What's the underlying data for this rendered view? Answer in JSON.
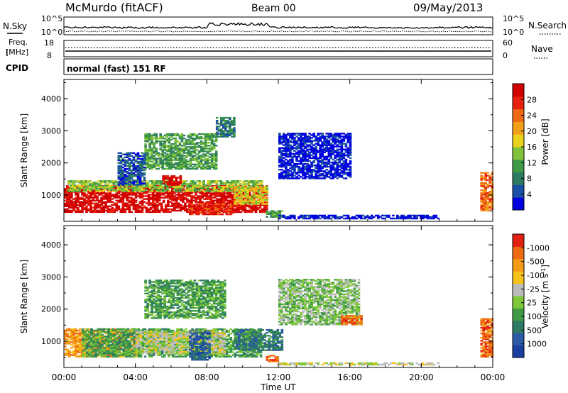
{
  "header": {
    "station": "McMurdo (fitACF)",
    "beam": "Beam 00",
    "date": "09/May/2013"
  },
  "noise_panel": {
    "left_label": "N.Sky",
    "right_label": "N.Search",
    "left_ticks": [
      "10^5",
      "10^0"
    ],
    "right_ticks": [
      "10^5",
      "10^0"
    ]
  },
  "freq_panel": {
    "left_label_1": "Freq.",
    "left_label_2": "[MHz]",
    "right_label": "Nave",
    "left_ticks": [
      "18",
      "8"
    ],
    "right_ticks": [
      "60",
      "0"
    ]
  },
  "cpid_panel": {
    "label": "CPID",
    "mode_text": "normal (fast) 151 RF"
  },
  "chart_data": [
    {
      "type": "heatmap",
      "name": "power",
      "title": "",
      "xlabel": "",
      "ylabel": "Slant Range [km]",
      "x_ticks": [
        "00:00",
        "04:00",
        "08:00",
        "12:00",
        "16:00",
        "20:00",
        "00:00"
      ],
      "y_ticks": [
        "1000",
        "2000",
        "3000",
        "4000"
      ],
      "xlim_hours": [
        0,
        24
      ],
      "ylim_km": [
        180,
        4600
      ],
      "colorbar": {
        "label": "Power [dB]",
        "ticks": [
          "4",
          "8",
          "12",
          "16",
          "20",
          "24",
          "28"
        ],
        "colors": [
          "#0000e0",
          "#1a4fa6",
          "#2e7a62",
          "#3f9a45",
          "#80c23a",
          "#e8d21b",
          "#f2a01a",
          "#ef6a14",
          "#e8200e",
          "#d00000"
        ]
      },
      "regions": [
        {
          "t0": 0.0,
          "t1": 11.3,
          "r0": 450,
          "r1": 1300,
          "level": 9
        },
        {
          "t0": 0.2,
          "t1": 11.0,
          "r0": 1100,
          "r1": 1450,
          "level": 4
        },
        {
          "t0": 5.5,
          "t1": 6.5,
          "r0": 1300,
          "r1": 1600,
          "level": 9
        },
        {
          "t0": 7.0,
          "t1": 9.5,
          "r0": 380,
          "r1": 700,
          "level": 8
        },
        {
          "t0": 9.5,
          "t1": 11.3,
          "r0": 700,
          "r1": 1250,
          "level": 5
        },
        {
          "t0": 11.3,
          "t1": 12.2,
          "r0": 300,
          "r1": 500,
          "level": 3
        },
        {
          "t0": 12.0,
          "t1": 21.0,
          "r0": 250,
          "r1": 350,
          "level": 0
        },
        {
          "t0": 4.5,
          "t1": 8.5,
          "r0": 1800,
          "r1": 2900,
          "level": 3
        },
        {
          "t0": 8.5,
          "t1": 9.5,
          "r0": 2800,
          "r1": 3400,
          "level": 2
        },
        {
          "t0": 12.0,
          "t1": 16.0,
          "r0": 1500,
          "r1": 2900,
          "level": 0
        },
        {
          "t0": 3.0,
          "t1": 4.5,
          "r0": 1300,
          "r1": 2300,
          "level": 1
        },
        {
          "t0": 23.3,
          "t1": 24.0,
          "r0": 500,
          "r1": 1700,
          "level": 7
        }
      ]
    },
    {
      "type": "heatmap",
      "name": "velocity",
      "title": "",
      "xlabel": "Time UT",
      "ylabel": "Slant Range [km]",
      "x_ticks": [
        "00:00",
        "04:00",
        "08:00",
        "12:00",
        "16:00",
        "20:00",
        "00:00"
      ],
      "y_ticks": [
        "1000",
        "2000",
        "3000",
        "4000"
      ],
      "xlim_hours": [
        0,
        24
      ],
      "ylim_km": [
        180,
        4600
      ],
      "colorbar": {
        "label": "Velocity [m s",
        "label_sup": "-1",
        "label_end": "]",
        "ticks": [
          "1000",
          "500",
          "100",
          "25",
          "-25",
          "-100",
          "-500",
          "-1000"
        ],
        "colors": [
          "#1a3fa0",
          "#2a5aa8",
          "#2e7a62",
          "#3f9a45",
          "#7ec83a",
          "#bbbbbb",
          "#f6c21a",
          "#f39a16",
          "#ef6a14",
          "#e02010"
        ]
      },
      "regions": [
        {
          "t0": 0.0,
          "t1": 4.0,
          "r0": 500,
          "r1": 1400,
          "level": 7
        },
        {
          "t0": 1.0,
          "t1": 11.0,
          "r0": 500,
          "r1": 1400,
          "level": 3
        },
        {
          "t0": 4.0,
          "t1": 9.0,
          "r0": 600,
          "r1": 1300,
          "level": 5
        },
        {
          "t0": 7.0,
          "t1": 8.2,
          "r0": 400,
          "r1": 1300,
          "level": 1
        },
        {
          "t0": 9.5,
          "t1": 12.2,
          "r0": 700,
          "r1": 1350,
          "level": 2
        },
        {
          "t0": 11.3,
          "t1": 12.0,
          "r0": 350,
          "r1": 550,
          "level": 8
        },
        {
          "t0": 4.5,
          "t1": 9.0,
          "r0": 1700,
          "r1": 2900,
          "level": 3
        },
        {
          "t0": 12.0,
          "t1": 16.5,
          "r0": 1500,
          "r1": 2900,
          "level": 4
        },
        {
          "t0": 15.5,
          "t1": 16.7,
          "r0": 1500,
          "r1": 1800,
          "level": 8
        },
        {
          "t0": 12.0,
          "t1": 21.0,
          "r0": 250,
          "r1": 330,
          "level": 5
        },
        {
          "t0": 23.3,
          "t1": 24.0,
          "r0": 500,
          "r1": 1700,
          "level": 8
        }
      ]
    }
  ]
}
